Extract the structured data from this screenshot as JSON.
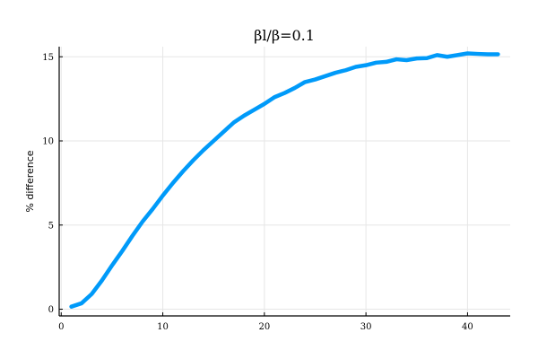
{
  "chart_data": {
    "type": "line",
    "title": "βl/β=0.1",
    "xlabel": "",
    "ylabel": "% difference",
    "xlim": [
      -0.2,
      44.2
    ],
    "ylim": [
      -0.4,
      15.6
    ],
    "xticks": [
      0,
      10,
      20,
      30,
      40
    ],
    "xtick_labels": [
      "0",
      "10",
      "20",
      "30",
      "40"
    ],
    "yticks": [
      0,
      5,
      10,
      15
    ],
    "ytick_labels": [
      "0",
      "5",
      "10",
      "15"
    ],
    "grid": true,
    "legend": false,
    "series": [
      {
        "color": "#009af9",
        "x": [
          1,
          2,
          3,
          4,
          5,
          6,
          7,
          8,
          9,
          10,
          11,
          12,
          13,
          14,
          15,
          16,
          17,
          18,
          19,
          20,
          21,
          22,
          23,
          24,
          25,
          26,
          27,
          28,
          29,
          30,
          31,
          32,
          33,
          34,
          35,
          36,
          37,
          38,
          39,
          40,
          41,
          42,
          43
        ],
        "y": [
          0.15,
          0.35,
          0.9,
          1.7,
          2.6,
          3.45,
          4.35,
          5.2,
          5.95,
          6.75,
          7.5,
          8.2,
          8.85,
          9.45,
          10.0,
          10.55,
          11.1,
          11.5,
          11.85,
          12.2,
          12.6,
          12.85,
          13.15,
          13.5,
          13.65,
          13.85,
          14.05,
          14.2,
          14.4,
          14.5,
          14.65,
          14.7,
          14.85,
          14.8,
          14.9,
          14.92,
          15.1,
          15.0,
          15.1,
          15.2,
          15.17,
          15.15,
          15.15
        ]
      }
    ]
  }
}
